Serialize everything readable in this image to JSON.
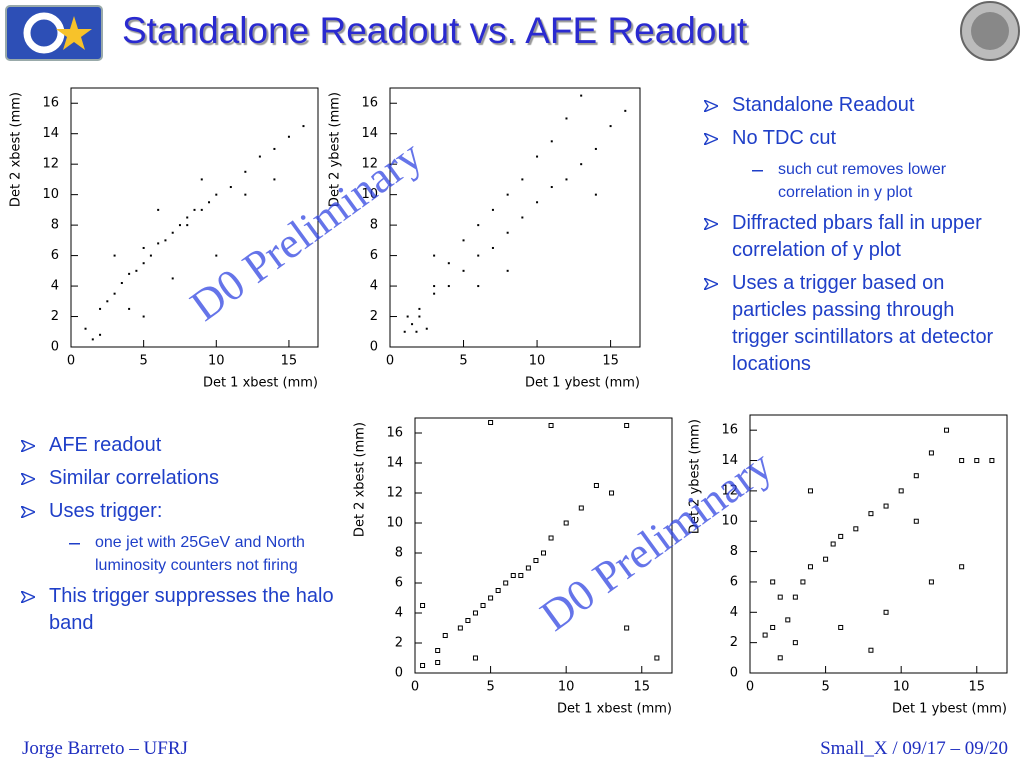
{
  "slide": {
    "title": "Standalone Readout vs. AFE Readout",
    "watermark": "D0 Preliminary",
    "right_bullets": [
      {
        "text": "Standalone Readout",
        "level": 1
      },
      {
        "text": "No TDC cut",
        "level": 1
      },
      {
        "text": "such cut removes lower correlation in y plot",
        "level": 2
      },
      {
        "text": "Diffracted pbars fall in upper correlation of y plot",
        "level": 1
      },
      {
        "text": "Uses a trigger based on particles passing through trigger scintillators at detector locations",
        "level": 1
      }
    ],
    "left_bullets": [
      {
        "text": "AFE readout",
        "level": 1
      },
      {
        "text": "Similar correlations",
        "level": 1
      },
      {
        "text": "Uses trigger:",
        "level": 1
      },
      {
        "text": "one jet with 25GeV and North luminosity counters not firing",
        "level": 2
      },
      {
        "text": "This trigger suppresses the halo band",
        "level": 1
      }
    ],
    "footer": {
      "left": "Jorge Barreto – UFRJ",
      "right": "Small_X / 09/17 – 09/20"
    }
  },
  "chart_data": [
    {
      "type": "scatter",
      "x_label": "Det 1 xbest (mm)",
      "y_label": "Det 2 xbest (mm)",
      "marker": "dot",
      "color": "#000000",
      "xlim": [
        0,
        17
      ],
      "ylim": [
        0,
        17
      ],
      "xticks": [
        0,
        5,
        10,
        15
      ],
      "yticks": [
        0,
        2,
        4,
        6,
        8,
        10,
        12,
        14,
        16
      ],
      "x": [
        1,
        2,
        2.5,
        3,
        3.5,
        4,
        4.5,
        5,
        5.5,
        5,
        6,
        6.5,
        7,
        7.5,
        8,
        8,
        8.5,
        9,
        9.5,
        10,
        11,
        12,
        13,
        14,
        15,
        16,
        3,
        6,
        9,
        12,
        14,
        2,
        5,
        10,
        1.5,
        4,
        7
      ],
      "values": [
        1.2,
        2.5,
        3,
        3.5,
        4.2,
        4.8,
        5,
        5.5,
        6,
        6.5,
        6.8,
        7,
        7.5,
        8,
        8,
        8.5,
        9,
        9,
        9.5,
        10,
        10.5,
        11.5,
        12.5,
        13,
        13.8,
        14.5,
        6,
        9,
        11,
        10,
        11,
        0.8,
        2,
        6,
        0.5,
        2.5,
        4.5
      ]
    },
    {
      "type": "scatter",
      "x_label": "Det 1 ybest (mm)",
      "y_label": "Det 2 ybest (mm)",
      "marker": "dot",
      "color": "#000000",
      "xlim": [
        0,
        17
      ],
      "ylim": [
        0,
        17
      ],
      "xticks": [
        0,
        5,
        10,
        15
      ],
      "yticks": [
        0,
        2,
        4,
        6,
        8,
        10,
        12,
        14,
        16
      ],
      "x": [
        1,
        1.5,
        2,
        1.2,
        2.5,
        1.8,
        3,
        4,
        5,
        6,
        7,
        8,
        9,
        10,
        11,
        12,
        13,
        2,
        3,
        4,
        5,
        6,
        7,
        8,
        9,
        10,
        11,
        12,
        13,
        14,
        15,
        16,
        3,
        8,
        14,
        6
      ],
      "values": [
        1,
        1.5,
        2,
        2,
        1.2,
        1,
        4,
        5.5,
        7,
        8,
        9,
        10,
        11,
        12.5,
        13.5,
        15,
        16.5,
        2.5,
        3.5,
        4,
        5,
        6,
        6.5,
        7.5,
        8.5,
        9.5,
        10.5,
        11,
        12,
        13,
        14.5,
        15.5,
        6,
        5,
        10,
        4
      ]
    },
    {
      "type": "scatter",
      "x_label": "Det 1 xbest (mm)",
      "y_label": "Det 2 xbest (mm)",
      "marker": "square",
      "color": "#000000",
      "xlim": [
        0,
        17
      ],
      "ylim": [
        0,
        17
      ],
      "xticks": [
        0,
        5,
        10,
        15
      ],
      "yticks": [
        0,
        2,
        4,
        6,
        8,
        10,
        12,
        14,
        16
      ],
      "x": [
        0.5,
        1.5,
        2,
        3,
        3.5,
        4,
        4.5,
        5,
        5.5,
        6,
        6.5,
        7,
        7.5,
        8,
        8.5,
        9,
        10,
        11,
        12,
        13,
        14,
        1.5,
        4,
        9,
        16,
        5,
        0.5,
        14
      ],
      "values": [
        0.5,
        1.5,
        2.5,
        3,
        3.5,
        4,
        4.5,
        5,
        5.5,
        6,
        6.5,
        6.5,
        7,
        7.5,
        8,
        9,
        10,
        11,
        12.5,
        12,
        16.5,
        0.7,
        1,
        16.5,
        1,
        16.7,
        4.5,
        3
      ]
    },
    {
      "type": "scatter",
      "x_label": "Det 1 ybest (mm)",
      "y_label": "Det 2 ybest (mm)",
      "marker": "square",
      "color": "#000000",
      "xlim": [
        0,
        17
      ],
      "ylim": [
        0,
        17
      ],
      "xticks": [
        0,
        5,
        10,
        15
      ],
      "yticks": [
        0,
        2,
        4,
        6,
        8,
        10,
        12,
        14,
        16
      ],
      "x": [
        1,
        1.5,
        2,
        1.5,
        2.5,
        3,
        3.5,
        4,
        5,
        5.5,
        6,
        7,
        8,
        9,
        10,
        11,
        12,
        13,
        14,
        15,
        16,
        3,
        6,
        9,
        12,
        14,
        8,
        11,
        2,
        4
      ],
      "values": [
        2.5,
        3,
        5,
        6,
        3.5,
        5,
        6,
        7,
        7.5,
        8.5,
        9,
        9.5,
        10.5,
        11,
        12,
        13,
        14.5,
        16,
        14,
        14,
        14,
        2,
        3,
        4,
        6,
        7,
        1.5,
        10,
        1,
        12
      ]
    }
  ]
}
